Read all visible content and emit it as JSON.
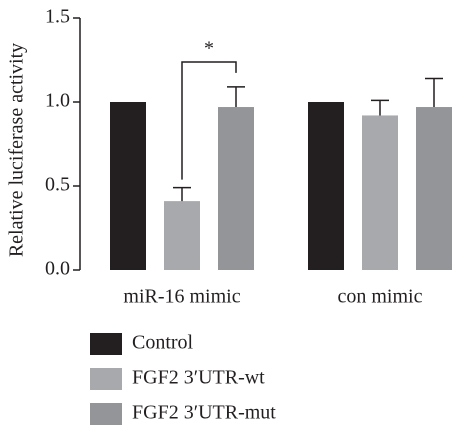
{
  "chart_data": {
    "type": "bar",
    "y_label": "Relative luciferase activity",
    "categories": [
      "miR-16 mimic",
      "con mimic"
    ],
    "series": [
      {
        "name": "Control",
        "color": "#231f20",
        "values": [
          1.0,
          1.0
        ],
        "errors": [
          null,
          null
        ]
      },
      {
        "name": "FGF2 3′UTR-wt",
        "color": "#a7a9ac",
        "values": [
          0.41,
          0.92
        ],
        "errors": [
          0.08,
          0.09
        ]
      },
      {
        "name": "FGF2 3′UTR-mut",
        "color": "#939598",
        "values": [
          0.97,
          0.97
        ],
        "errors": [
          0.12,
          0.17
        ]
      }
    ],
    "ylim": [
      0,
      1.5
    ],
    "yticks": [
      {
        "value": 0,
        "label": "0.0"
      },
      {
        "value": 0.5,
        "label": "0.5"
      },
      {
        "value": 1,
        "label": "1.0"
      },
      {
        "value": 1.5,
        "label": "1.5"
      }
    ],
    "annotation": "*"
  }
}
